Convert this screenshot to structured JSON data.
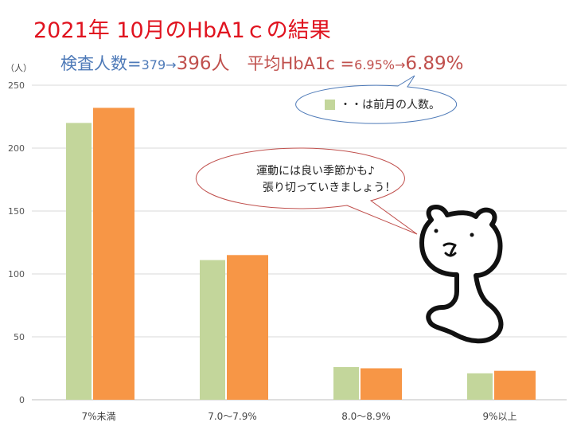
{
  "header": {
    "title": "2021年 10月のHbA1ｃの結果",
    "subtitle": {
      "count_label": "検査人数=",
      "count_prev": "379",
      "arrow1": "→",
      "count_now": "396人",
      "avg_label": "平均HbA1c =",
      "avg_prev": "6.95%",
      "arrow2": "→",
      "avg_now": "6.89%"
    }
  },
  "callouts": {
    "legend_note": "・・は前月の人数。",
    "speech_line1": "運動には良い季節かも♪",
    "speech_line2": "張り切っていきましょう！"
  },
  "chart_data": {
    "type": "bar",
    "ylabel": "（人）",
    "ylim": [
      0,
      250
    ],
    "yticks": [
      0,
      50,
      100,
      150,
      200,
      250
    ],
    "categories": [
      "7%未満",
      "7.0〜7.9%",
      "8.0〜8.9%",
      "9%以上"
    ],
    "series": [
      {
        "name": "前月",
        "color": "#c3d69b",
        "values": [
          220,
          111,
          26,
          21
        ]
      },
      {
        "color": "#f79646",
        "values": [
          232,
          115,
          25,
          23
        ]
      }
    ],
    "grid": true,
    "legend": "none"
  },
  "colors": {
    "title": "#e0131f",
    "subtitle_blue": "#4e7ab8",
    "subtitle_red": "#c0504d",
    "gridline": "#d9d9d9",
    "speech_outline": "#c0504d",
    "legend_outline": "#4e7ab8"
  },
  "decorations": {
    "character": "bear-illustration"
  }
}
